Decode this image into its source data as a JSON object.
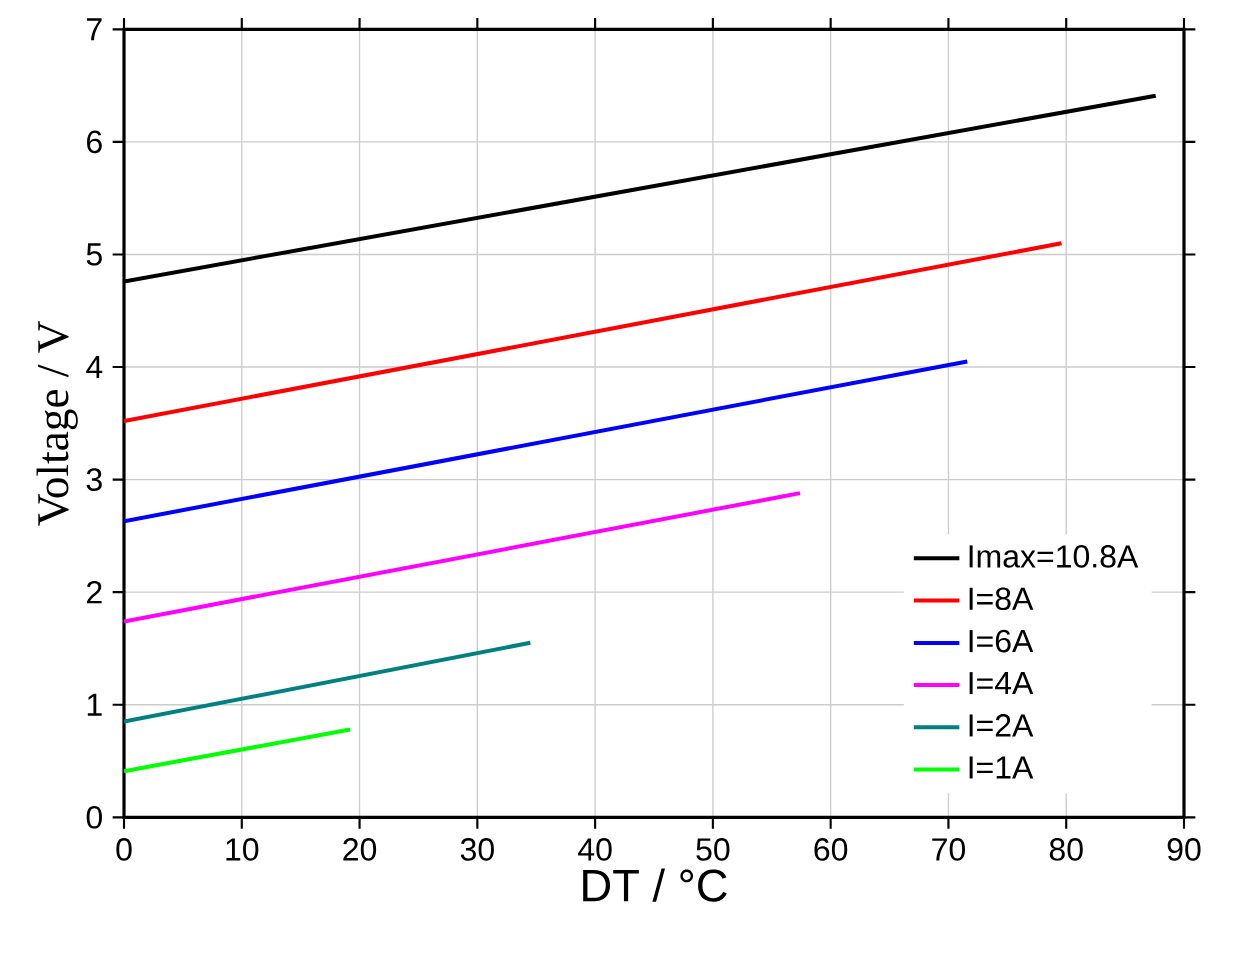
{
  "chart_data": {
    "type": "line",
    "xlabel": "DT / °C",
    "ylabel": "Voltage / V",
    "xlim": [
      0,
      90
    ],
    "ylim": [
      0,
      7
    ],
    "xticks": [
      0,
      10,
      20,
      30,
      40,
      50,
      60,
      70,
      80,
      90
    ],
    "yticks": [
      0,
      1,
      2,
      3,
      4,
      5,
      6,
      7
    ],
    "grid": true,
    "legend": "bottom right",
    "marker": "none",
    "line_style": "solid",
    "series": [
      {
        "name": "Imax=10.8A",
        "color": "#000000",
        "x": [
          0,
          87.6
        ],
        "values": [
          4.76,
          6.41
        ]
      },
      {
        "name": "I=8A",
        "color": "#ff0000",
        "x": [
          0,
          79.6
        ],
        "values": [
          3.52,
          5.1
        ]
      },
      {
        "name": "I=6A",
        "color": "#0000ff",
        "x": [
          0,
          71.6
        ],
        "values": [
          2.63,
          4.05
        ]
      },
      {
        "name": "I=4A",
        "color": "#ff00ff",
        "x": [
          0,
          57.4
        ],
        "values": [
          1.74,
          2.88
        ]
      },
      {
        "name": "I=2A",
        "color": "#008080",
        "x": [
          0,
          34.5
        ],
        "values": [
          0.85,
          1.55
        ]
      },
      {
        "name": "I=1A",
        "color": "#00ff00",
        "x": [
          0,
          19.2
        ],
        "values": [
          0.41,
          0.78
        ]
      }
    ]
  }
}
